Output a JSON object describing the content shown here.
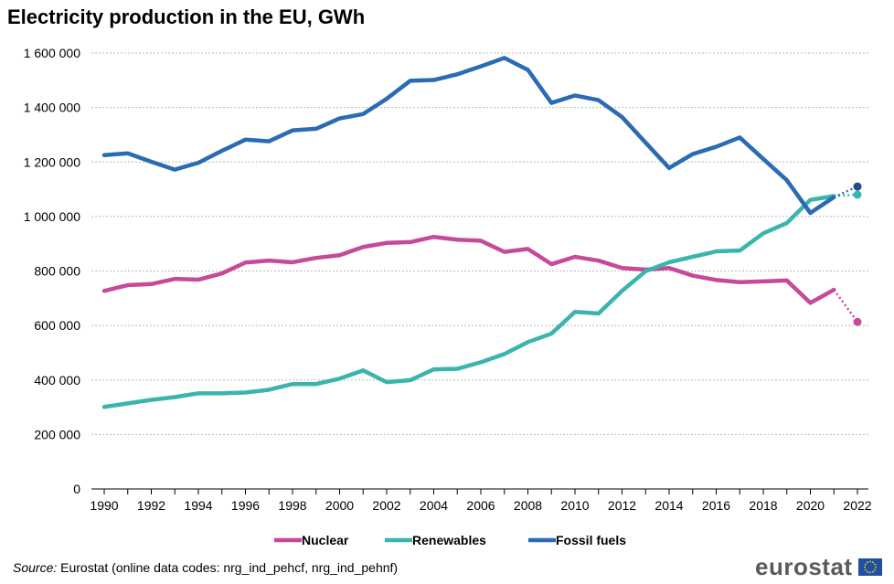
{
  "title": "Electricity production in the EU, GWh",
  "source": {
    "label": "Source:",
    "text": " Eurostat (online data codes: nrg_ind_pehcf, nrg_ind_pehnf)"
  },
  "logo": {
    "text": "eurostat"
  },
  "chart_data": {
    "type": "line",
    "title": "Electricity production in the EU, GWh",
    "x": [
      1990,
      1991,
      1992,
      1993,
      1994,
      1995,
      1996,
      1997,
      1998,
      1999,
      2000,
      2001,
      2002,
      2003,
      2004,
      2005,
      2006,
      2007,
      2008,
      2009,
      2010,
      2011,
      2012,
      2013,
      2014,
      2015,
      2016,
      2017,
      2018,
      2019,
      2020,
      2021
    ],
    "x_ticks": [
      "1990",
      "1992",
      "1994",
      "1996",
      "1998",
      "2000",
      "2002",
      "2004",
      "2006",
      "2008",
      "2010",
      "2012",
      "2014",
      "2016",
      "2018",
      "2020",
      "2022"
    ],
    "y_ticks": [
      "0",
      "200 000",
      "400 000",
      "600 000",
      "800 000",
      "1 000 000",
      "1 200 000",
      "1 400 000",
      "1 600 000"
    ],
    "ylim": [
      0,
      1600000
    ],
    "xlim": [
      1990,
      2022
    ],
    "grid": true,
    "legend_position": "bottom",
    "series": [
      {
        "name": "Nuclear",
        "color": "#c6499a",
        "values": [
          727000,
          748000,
          752000,
          771000,
          768000,
          791000,
          831000,
          838000,
          832000,
          848000,
          858000,
          888000,
          903000,
          906000,
          925000,
          915000,
          911000,
          870000,
          881000,
          825000,
          852000,
          838000,
          811000,
          805000,
          811000,
          783000,
          767000,
          759000,
          762000,
          765000,
          683000,
          731000
        ],
        "projection": {
          "x": 2022,
          "value": 613000,
          "color": "#c6499a"
        }
      },
      {
        "name": "Renewables",
        "color": "#3ab5ad",
        "values": [
          301000,
          314000,
          327000,
          337000,
          351000,
          351000,
          354000,
          364000,
          385000,
          385000,
          405000,
          435000,
          392000,
          399000,
          439000,
          441000,
          465000,
          495000,
          539000,
          570000,
          650000,
          644000,
          727000,
          799000,
          832000,
          852000,
          872000,
          875000,
          938000,
          976000,
          1061000,
          1075000
        ],
        "projection": {
          "x": 2022,
          "value": 1080000,
          "color": "#3ab5ad"
        }
      },
      {
        "name": "Fossil fuels",
        "color": "#2a6bb3",
        "values": [
          1225000,
          1232000,
          1201000,
          1172000,
          1197000,
          1241000,
          1282000,
          1276000,
          1316000,
          1322000,
          1360000,
          1376000,
          1432000,
          1498000,
          1501000,
          1522000,
          1551000,
          1582000,
          1538000,
          1417000,
          1444000,
          1427000,
          1365000,
          1271000,
          1178000,
          1229000,
          1256000,
          1290000,
          1211000,
          1133000,
          1013000,
          1071000
        ],
        "projection": {
          "x": 2022,
          "value": 1110000,
          "color": "#234b87"
        }
      }
    ]
  }
}
